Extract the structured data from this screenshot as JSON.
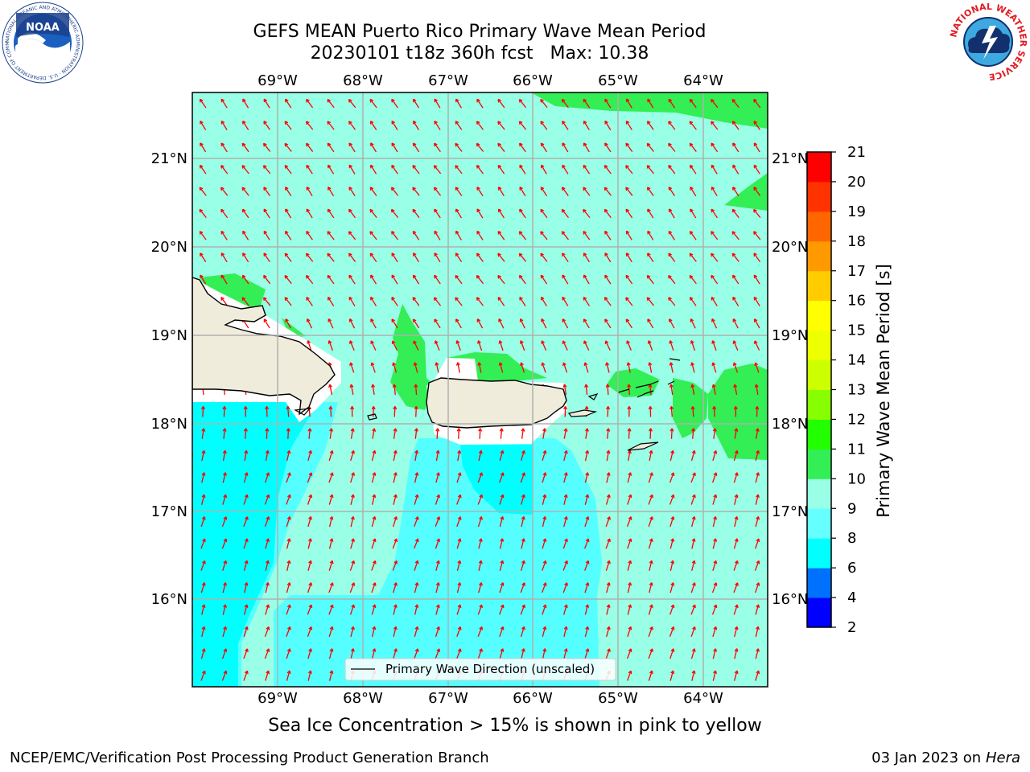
{
  "header": {
    "title_line1": "GEFS MEAN Puerto Rico Primary Wave Mean Period",
    "title_date": "20230101 t18z 360h fcst",
    "title_max": "Max: 10.38"
  },
  "logos": {
    "noaa_text": "NOAA",
    "noaa_ring_text": "NATIONAL OCEANIC AND ATMOSPHERIC ADMINISTRATION · U.S. DEPARTMENT OF COMMERCE",
    "nws_ring_text": "NATIONAL WEATHER SERVICE"
  },
  "map": {
    "lon_labels": [
      "69°W",
      "68°W",
      "67°W",
      "66°W",
      "65°W",
      "64°W"
    ],
    "lat_labels": [
      "21°N",
      "20°N",
      "19°N",
      "18°N",
      "17°N",
      "16°N"
    ],
    "legend_label": "Primary Wave Direction (unscaled)",
    "colors": {
      "ocean_9_10": "#99ffe6",
      "ocean_10_11": "#33ee55",
      "ocean_8_9": "#55ffff",
      "ocean_6_8": "#00ffff",
      "land": "#efecdc",
      "arrow": "#ff0000",
      "grid": "#b0b0b0"
    }
  },
  "colorbar": {
    "label": "Primary Wave Mean Period [s]",
    "ticks": [
      "2",
      "4",
      "6",
      "8",
      "9",
      "10",
      "11",
      "12",
      "13",
      "14",
      "15",
      "16",
      "17",
      "18",
      "19",
      "20",
      "21"
    ],
    "colors": [
      "#0000ff",
      "#0070ff",
      "#00ffff",
      "#66ffff",
      "#99ffe6",
      "#33ee55",
      "#22ff00",
      "#88ff00",
      "#ccff00",
      "#eeff00",
      "#ffff00",
      "#ffcc00",
      "#ff9900",
      "#ff6600",
      "#ff3300",
      "#ff0000"
    ]
  },
  "caption": "Sea Ice Concentration > 15% is shown in pink to yellow",
  "footer": {
    "left": "NCEP/EMC/Verification Post Processing Product Generation Branch",
    "date": "03 Jan 2023 on",
    "host": "Hera"
  }
}
